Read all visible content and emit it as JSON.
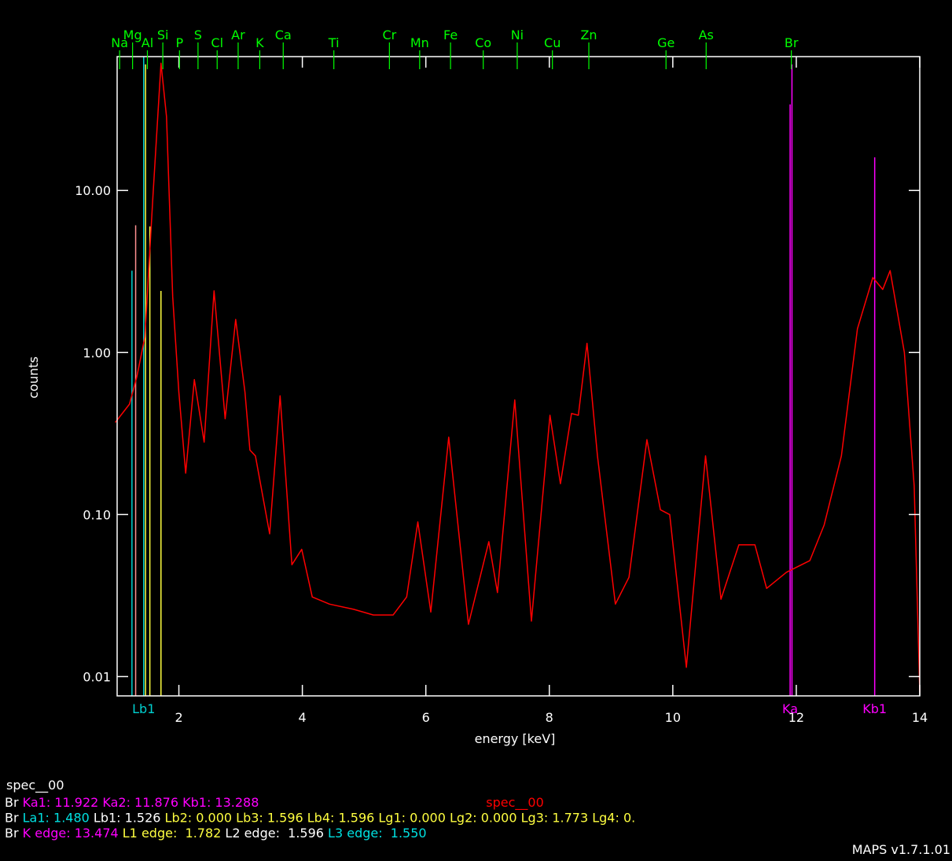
{
  "chart_data": {
    "type": "line",
    "log_y": true,
    "xlabel": "energy [keV]",
    "ylabel": "counts",
    "file_label": "spec__00",
    "xlim": [
      1,
      14
    ],
    "xticks": [
      2,
      4,
      6,
      8,
      10,
      12,
      14
    ],
    "ylim": [
      0.0076,
      67
    ],
    "yticks": [
      {
        "value": 10,
        "label": "10.00"
      },
      {
        "value": 1,
        "label": "1.00"
      },
      {
        "value": 0.1,
        "label": "0.10"
      },
      {
        "value": 0.01,
        "label": "0.01"
      }
    ],
    "axis_color": "#ffffff",
    "x": [
      0.97,
      1.2,
      1.32,
      1.45,
      1.58,
      1.71,
      1.8,
      1.9,
      2.0,
      2.11,
      2.25,
      2.41,
      2.57,
      2.75,
      2.92,
      3.07,
      3.15,
      3.24,
      3.47,
      3.64,
      3.83,
      3.99,
      4.16,
      4.44,
      4.83,
      5.15,
      5.47,
      5.69,
      5.87,
      6.08,
      6.37,
      6.69,
      7.02,
      7.16,
      7.44,
      7.71,
      8.01,
      8.18,
      8.36,
      8.47,
      8.61,
      8.78,
      9.07,
      9.29,
      9.58,
      9.8,
      9.95,
      10.22,
      10.53,
      10.78,
      11.07,
      11.33,
      11.52,
      11.84,
      12.22,
      12.45,
      12.73,
      12.99,
      13.24,
      13.4,
      13.52,
      13.75,
      13.91,
      14.0
    ],
    "series": [
      {
        "name": "spec__00",
        "color": "#ff0000",
        "values": [
          0.37,
          0.48,
          0.71,
          1.25,
          9.3,
          61,
          28.6,
          2.2,
          0.57,
          0.18,
          0.68,
          0.28,
          2.4,
          0.39,
          1.6,
          0.57,
          0.25,
          0.23,
          0.076,
          0.54,
          0.049,
          0.061,
          0.031,
          0.028,
          0.026,
          0.024,
          0.024,
          0.031,
          0.09,
          0.025,
          0.3,
          0.021,
          0.068,
          0.033,
          0.51,
          0.022,
          0.41,
          0.155,
          0.42,
          0.41,
          1.14,
          0.23,
          0.028,
          0.041,
          0.29,
          0.107,
          0.1,
          0.0114,
          0.23,
          0.03,
          0.065,
          0.065,
          0.035,
          0.044,
          0.052,
          0.086,
          0.23,
          1.4,
          2.9,
          2.45,
          3.2,
          1.0,
          0.15,
          0.008
        ]
      }
    ],
    "element_markers": {
      "color": "#00ff00",
      "items": [
        {
          "label": "Na",
          "energy": 1.04
        },
        {
          "label": "Mg",
          "energy": 1.25
        },
        {
          "label": "Al",
          "energy": 1.49
        },
        {
          "label": "Si",
          "energy": 1.74
        },
        {
          "label": "P",
          "energy": 2.01
        },
        {
          "label": "S",
          "energy": 2.31
        },
        {
          "label": "Cl",
          "energy": 2.62
        },
        {
          "label": "Ar",
          "energy": 2.96
        },
        {
          "label": "K",
          "energy": 3.31
        },
        {
          "label": "Ca",
          "energy": 3.69
        },
        {
          "label": "Ti",
          "energy": 4.51
        },
        {
          "label": "Cr",
          "energy": 5.41
        },
        {
          "label": "Mn",
          "energy": 5.9
        },
        {
          "label": "Fe",
          "energy": 6.4
        },
        {
          "label": "Co",
          "energy": 6.93
        },
        {
          "label": "Ni",
          "energy": 7.48
        },
        {
          "label": "Cu",
          "energy": 8.05
        },
        {
          "label": "Zn",
          "energy": 8.64
        },
        {
          "label": "Ge",
          "energy": 9.89
        },
        {
          "label": "As",
          "energy": 10.54
        },
        {
          "label": "Br",
          "energy": 11.92
        }
      ]
    },
    "emission_lines": [
      {
        "energy": 1.24,
        "height": 3.2,
        "color": "#00d0d0"
      },
      {
        "energy": 1.3,
        "height": 6.1,
        "color": "#ff9090"
      },
      {
        "energy": 1.43,
        "height": 67,
        "color": "#00d0d0",
        "label": "Lb1"
      },
      {
        "energy": 1.46,
        "height": 60,
        "color": "#ffff40"
      },
      {
        "energy": 1.53,
        "height": 6,
        "color": "#ffff40"
      },
      {
        "energy": 1.71,
        "height": 2.4,
        "color": "#ffff40"
      },
      {
        "energy": 11.9,
        "height": 34,
        "color": "#ff00ff",
        "label": "Ka"
      },
      {
        "energy": 11.93,
        "height": 60,
        "color": "#ff00ff"
      },
      {
        "energy": 13.27,
        "height": 16,
        "color": "#ff00ff",
        "label": "Kb1"
      }
    ],
    "info_lines": [
      [
        {
          "text": "Br ",
          "color": "#ffffff"
        },
        {
          "text": "Ka1: 11.922 Ka2: 11.876 Kb1: 13.288",
          "color": "#ff00ff"
        }
      ],
      [
        {
          "text": "Br ",
          "color": "#ffffff"
        },
        {
          "text": "La1: 1.480 ",
          "color": "#00e0e0"
        },
        {
          "text": "Lb1: 1.526 ",
          "color": "#ffffff"
        },
        {
          "text": "Lb2: 0.000 Lb3: 1.596 Lb4: 1.596 Lg1: 0.000 Lg2: 0.000 Lg3: 1.773 Lg4: 0.",
          "color": "#ffff40"
        }
      ],
      [
        {
          "text": "Br ",
          "color": "#ffffff"
        },
        {
          "text": "K edge: 13.474 ",
          "color": "#ff00ff"
        },
        {
          "text": "L1 edge:  1.782 ",
          "color": "#ffff40"
        },
        {
          "text": "L2 edge:  1.596 ",
          "color": "#ffffff"
        },
        {
          "text": "L3 edge:  1.550",
          "color": "#00e0e0"
        }
      ]
    ],
    "version": "MAPS v1.7.1.01"
  }
}
